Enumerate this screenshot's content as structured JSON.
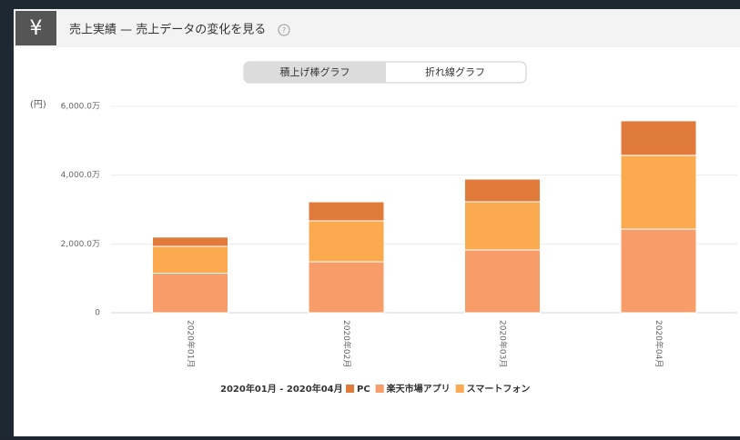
{
  "header": {
    "icon": "¥",
    "title": "売上実績 — 売上データの変化を見る",
    "help": "?"
  },
  "toggle": [
    "積上げ棒グラフ",
    "折れ線グラフ"
  ],
  "chart_data": {
    "type": "bar",
    "stacked": true,
    "ylabel": "(円)",
    "categories": [
      "2020年01月",
      "2020年02月",
      "2020年03月",
      "2020年04月"
    ],
    "series": [
      {
        "name": "PC",
        "color": "#e07b3c",
        "values": [
          270,
          555,
          660,
          1005
        ]
      },
      {
        "name": "楽天市場アプリ",
        "color": "#f89c6a",
        "values": [
          1150,
          1480,
          1825,
          2430
        ]
      },
      {
        "name": "スマートフォン",
        "color": "#fbaa50",
        "values": [
          780,
          1190,
          1400,
          2145
        ]
      }
    ],
    "ylim": [
      0,
      6000
    ],
    "yticks": [
      0,
      {
        "value": 2000,
        "label": "2,000.0万"
      },
      {
        "value": 4000,
        "label": "4,000.0万"
      },
      {
        "value": 6000,
        "label": "6,000.0万"
      }
    ],
    "grid": true,
    "legend_title": "2020年01月 - 2020年04月"
  }
}
